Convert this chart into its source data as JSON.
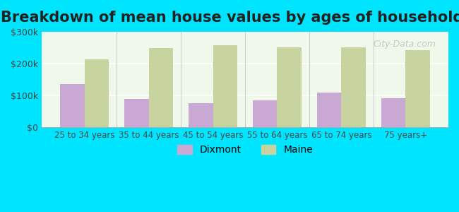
{
  "title": "Breakdown of mean house values by ages of householders",
  "categories": [
    "25 to 34 years",
    "35 to 44 years",
    "45 to 54 years",
    "55 to 64 years",
    "65 to 74 years",
    "75 years+"
  ],
  "dixmont": [
    135000,
    88000,
    75000,
    85000,
    110000,
    92000
  ],
  "maine": [
    213000,
    248000,
    258000,
    250000,
    252000,
    243000
  ],
  "dixmont_color": "#c9a8d4",
  "maine_color": "#c8d4a0",
  "background_outer": "#00e5ff",
  "background_inner": "#f0f8ec",
  "ylim": [
    0,
    300000
  ],
  "yticks": [
    0,
    100000,
    200000,
    300000
  ],
  "ytick_labels": [
    "$0",
    "$100k",
    "$200k",
    "$300k"
  ],
  "title_fontsize": 15,
  "legend_labels": [
    "Dixmont",
    "Maine"
  ],
  "bar_width": 0.38,
  "figsize": [
    6.5,
    3.0
  ],
  "dpi": 100
}
